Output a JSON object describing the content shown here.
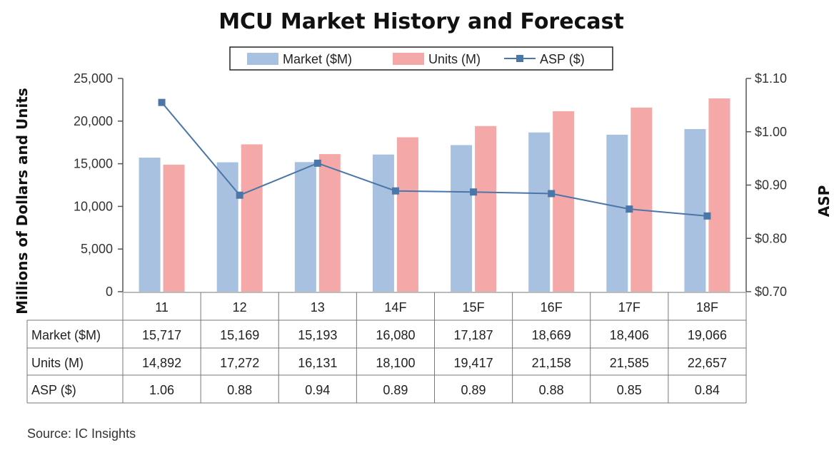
{
  "chart_data": {
    "type": "bar",
    "title": "MCU Market History and Forecast",
    "categories": [
      "11",
      "12",
      "13",
      "14F",
      "15F",
      "16F",
      "17F",
      "18F"
    ],
    "series": [
      {
        "name": "Market ($M)",
        "type": "bar",
        "axis": "left",
        "color": "#a9c1e0",
        "values": [
          15717,
          15169,
          15193,
          16080,
          17187,
          18669,
          18406,
          19066
        ],
        "labels": [
          "15,717",
          "15,169",
          "15,193",
          "16,080",
          "17,187",
          "18,669",
          "18,406",
          "19,066"
        ]
      },
      {
        "name": "Units (M)",
        "type": "bar",
        "axis": "left",
        "color": "#f5a8a8",
        "values": [
          14892,
          17272,
          16131,
          18100,
          19417,
          21158,
          21585,
          22657
        ],
        "labels": [
          "14,892",
          "17,272",
          "16,131",
          "18,100",
          "19,417",
          "21,158",
          "21,585",
          "22,657"
        ]
      },
      {
        "name": "ASP ($)",
        "type": "line",
        "axis": "right",
        "color": "#4a76a8",
        "values": [
          1.055,
          0.881,
          0.941,
          0.889,
          0.887,
          0.884,
          0.855,
          0.842
        ],
        "labels": [
          "1.06",
          "0.88",
          "0.94",
          "0.89",
          "0.89",
          "0.88",
          "0.85",
          "0.84"
        ]
      }
    ],
    "ylabel": "Millions of Dollars and Units",
    "ylim": [
      0,
      25000
    ],
    "yticks": [
      "0",
      "5,000",
      "10,000",
      "15,000",
      "20,000",
      "25,000"
    ],
    "y2label": "ASP",
    "y2lim": [
      0.7,
      1.1
    ],
    "y2ticks": [
      "$0.70",
      "$0.80",
      "$0.90",
      "$1.00",
      "$1.10"
    ],
    "legend_position": "top-center",
    "grid": false,
    "table": {
      "row_headers": [
        "Market ($M)",
        "Units (M)",
        "ASP ($)"
      ]
    },
    "source": "Source:  IC Insights"
  }
}
